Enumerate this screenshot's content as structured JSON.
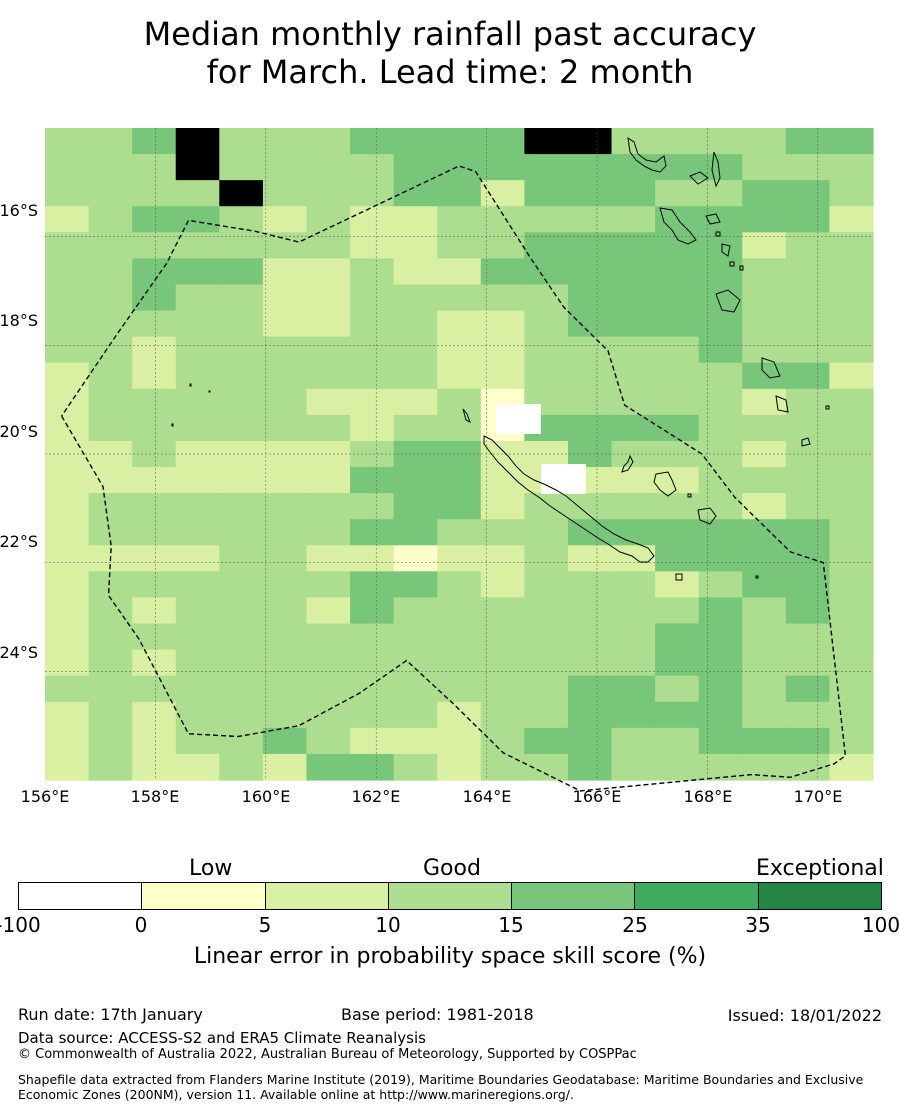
{
  "title_line1": "Median monthly rainfall past accuracy",
  "title_line2": "for March. Lead time: 2 month",
  "map": {
    "lon_range": [
      156.0,
      171.0
    ],
    "lat_range": [
      -26.0,
      -14.0
    ],
    "lat_ticks": [
      {
        "value": -16,
        "label": "16°S"
      },
      {
        "value": -18,
        "label": "18°S"
      },
      {
        "value": -20,
        "label": "20°S"
      },
      {
        "value": -22,
        "label": "22°S"
      },
      {
        "value": -24,
        "label": "24°S"
      }
    ],
    "lon_ticks": [
      {
        "value": 156,
        "label": "156°E"
      },
      {
        "value": 158,
        "label": "158°E"
      },
      {
        "value": 160,
        "label": "160°E"
      },
      {
        "value": 162,
        "label": "162°E"
      },
      {
        "value": 164,
        "label": "164°E"
      },
      {
        "value": 166,
        "label": "166°E"
      },
      {
        "value": 168,
        "label": "168°E"
      },
      {
        "value": 170,
        "label": "170°E"
      }
    ],
    "grid_level_rows": [
      "2234222333344222233",
      "2224222233333333222",
      "2222422233133322332",
      "1233212112222233331",
      "2222222112233333122",
      "2233311211333333222",
      "2232211222223333222",
      "2222211221123333222",
      "2212222221122223222",
      "1212222221122222331",
      "1222221112022222122",
      "1222222122033332222",
      "1121111233113222122",
      "1111111333111112222",
      "1222222233122222122",
      "1222222332223333332",
      "1111221101121133332",
      "1222222332122212332",
      "1212221322222223232",
      "1222222222222233222",
      "1212222222222233222",
      "2222222222223323232",
      "1212222221223333222",
      "1212232111233223332",
      "1211213321223222221"
    ],
    "levels": [
      "0-5",
      "5-10",
      "10-15",
      "15-25"
    ],
    "boundary_outline_lonlat": [
      [
        156.3,
        -19.3
      ],
      [
        157.05,
        -20.6
      ],
      [
        157.2,
        -21.7
      ],
      [
        157.15,
        -22.6
      ],
      [
        157.7,
        -23.4
      ],
      [
        158.6,
        -25.15
      ],
      [
        159.5,
        -25.2
      ],
      [
        160.6,
        -25.0
      ],
      [
        161.7,
        -24.4
      ],
      [
        162.55,
        -23.8
      ],
      [
        163.4,
        -24.6
      ],
      [
        164.3,
        -25.5
      ],
      [
        165.7,
        -26.2
      ],
      [
        168.8,
        -25.9
      ],
      [
        169.5,
        -25.95
      ],
      [
        170.3,
        -25.7
      ],
      [
        170.5,
        -25.55
      ],
      [
        170.1,
        -22.0
      ],
      [
        169.5,
        -21.8
      ],
      [
        168.5,
        -20.8
      ],
      [
        167.9,
        -20.0
      ],
      [
        166.5,
        -19.1
      ],
      [
        166.2,
        -18.1
      ],
      [
        165.4,
        -17.3
      ],
      [
        164.8,
        -16.4
      ],
      [
        163.8,
        -14.8
      ],
      [
        163.5,
        -14.7
      ],
      [
        160.6,
        -16.1
      ],
      [
        159.8,
        -15.9
      ],
      [
        158.6,
        -15.7
      ],
      [
        158.2,
        -16.5
      ],
      [
        157.3,
        -17.8
      ],
      [
        156.3,
        -19.3
      ]
    ],
    "boundary_color": "#000000",
    "grid_color": "#555555"
  },
  "colorbar": {
    "category_labels": [
      "Low",
      "Good",
      "Exceptional"
    ],
    "tick_labels": [
      "-100",
      "0",
      "5",
      "10",
      "15",
      "25",
      "35",
      "100"
    ],
    "colors": [
      "#ffffff",
      "#ffffcc",
      "#d9f0a3",
      "#addd8e",
      "#78c679",
      "#41ab5d",
      "#238443"
    ],
    "title": "Linear error in probability space skill score (%)"
  },
  "footer": {
    "run_date": "Run date: 17th January",
    "base_period": "Base period: 1981-2018",
    "issued": "Issued: 18/01/2022",
    "data_source": "Data source: ACCESS-S2 and ERA5 Climate Reanalysis",
    "copyright": "© Commonwealth of Australia 2022, Australian Bureau of Meteorology, Supported by COSPPac",
    "shapefile_note": "Shapefile data extracted from Flanders Marine Institute (2019), Maritime Boundaries Geodatabase: Maritime Boundaries and Exclusive Economic Zones (200NM), version 11. Available online at http://www.marineregions.org/."
  }
}
